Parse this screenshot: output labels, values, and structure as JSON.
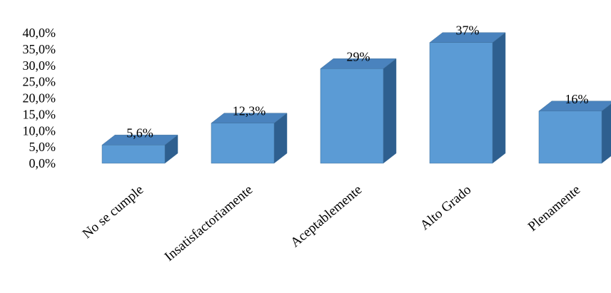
{
  "chart_data": {
    "type": "bar",
    "categories": [
      "No se cumple",
      "Insatisfactoriamente",
      "Aceptablemente",
      "Alto Grado",
      "Plenamente"
    ],
    "values": [
      5.6,
      12.3,
      29,
      37,
      16
    ],
    "data_labels": [
      "5,6%",
      "12,3%",
      "29%",
      "37%",
      "16%"
    ],
    "y_ticks": [
      "0,0%",
      "5,0%",
      "10,0%",
      "15,0%",
      "20,0%",
      "25,0%",
      "30,0%",
      "35,0%",
      "40,0%"
    ],
    "ylim": [
      0,
      40
    ],
    "title": "",
    "xlabel": "",
    "ylabel": "",
    "grid": false,
    "style": "3d-bar",
    "colors": {
      "front": "#5B9BD5",
      "top": "#4A83BE",
      "side": "#2E5F8F",
      "edge": "#41719C"
    }
  }
}
